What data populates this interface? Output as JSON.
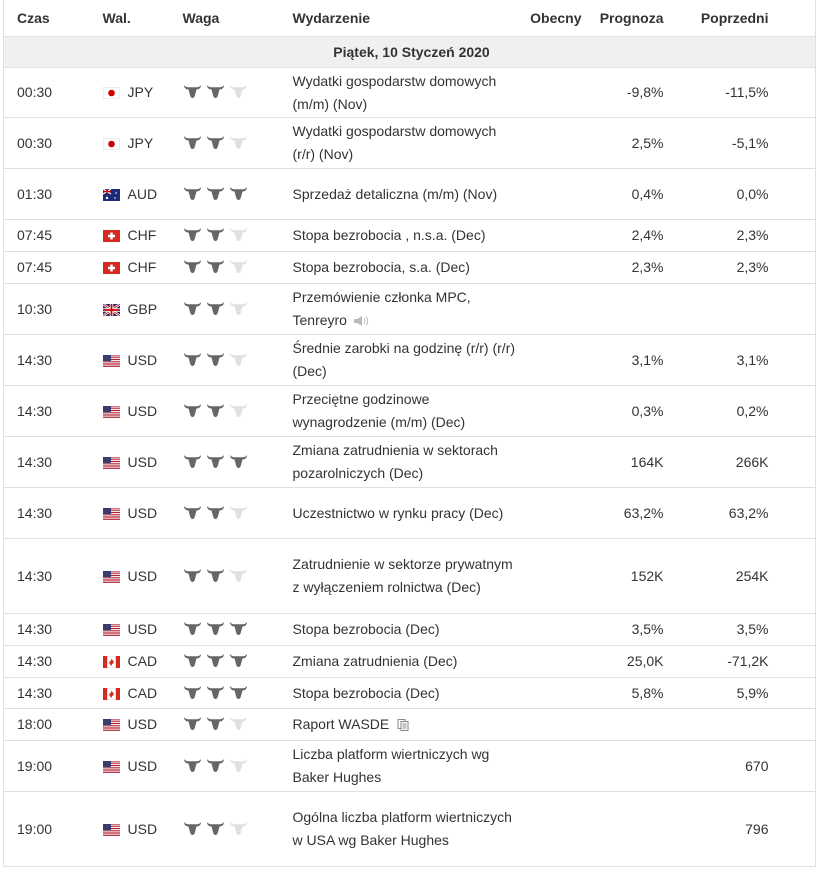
{
  "header": [
    "Czas",
    "Wal.",
    "Waga",
    "Wydarzenie",
    "Obecny",
    "Prognoza",
    "Poprzedni"
  ],
  "date": "Piątek, 10 Styczeń 2020",
  "rows": [
    {
      "time": "00:30",
      "currency": "JPY",
      "importance": 2,
      "event": "Wydatki gospodarstw domowych (m/m) (Nov)",
      "forecast": "-9,8%",
      "previous": "-11,5%"
    },
    {
      "time": "00:30",
      "currency": "JPY",
      "importance": 2,
      "event": "Wydatki gospodarstw domowych (r/r) (Nov)",
      "forecast": "2,5%",
      "previous": "-5,1%"
    },
    {
      "time": "01:30",
      "currency": "AUD",
      "importance": 3,
      "event": "Sprzedaż detaliczna (m/m) (Nov)",
      "forecast": "0,4%",
      "previous": "0,0%"
    },
    {
      "time": "07:45",
      "currency": "CHF",
      "importance": 2,
      "event": "Stopa bezrobocia , n.s.a. (Dec)",
      "forecast": "2,4%",
      "previous": "2,3%"
    },
    {
      "time": "07:45",
      "currency": "CHF",
      "importance": 2,
      "event": "Stopa bezrobocia, s.a. (Dec)",
      "forecast": "2,3%",
      "previous": "2,3%"
    },
    {
      "time": "10:30",
      "currency": "GBP",
      "importance": 2,
      "event": "Przemówienie członka MPC, Tenreyro"
    },
    {
      "time": "14:30",
      "currency": "USD",
      "importance": 2,
      "event": "Średnie zarobki na godzinę (r/r) (r/r) (Dec)",
      "forecast": "3,1%",
      "previous": "3,1%"
    },
    {
      "time": "14:30",
      "currency": "USD",
      "importance": 2,
      "event": "Przeciętne godzinowe wynagrodzenie (m/m) (Dec)",
      "forecast": "0,3%",
      "previous": "0,2%"
    },
    {
      "time": "14:30",
      "currency": "USD",
      "importance": 3,
      "event": "Zmiana zatrudnienia w sektorach pozarolniczych (Dec)",
      "forecast": "164K",
      "previous": "266K"
    },
    {
      "time": "14:30",
      "currency": "USD",
      "importance": 2,
      "event": "Uczestnictwo w rynku pracy (Dec)",
      "forecast": "63,2%",
      "previous": "63,2%"
    },
    {
      "time": "14:30",
      "currency": "USD",
      "importance": 2,
      "event": "Zatrudnienie w sektorze prywatnym z wyłączeniem rolnictwa (Dec)",
      "forecast": "152K",
      "previous": "254K"
    },
    {
      "time": "14:30",
      "currency": "USD",
      "importance": 3,
      "event": "Stopa bezrobocia (Dec)",
      "forecast": "3,5%",
      "previous": "3,5%"
    },
    {
      "time": "14:30",
      "currency": "CAD",
      "importance": 3,
      "event": "Zmiana zatrudnienia (Dec)",
      "forecast": "25,0K",
      "previous": "-71,2K"
    },
    {
      "time": "14:30",
      "currency": "CAD",
      "importance": 3,
      "event": "Stopa bezrobocia (Dec)",
      "forecast": "5,8%",
      "previous": "5,9%"
    },
    {
      "time": "18:00",
      "currency": "USD",
      "importance": 2,
      "event": "Raport WASDE"
    },
    {
      "time": "19:00",
      "currency": "USD",
      "importance": 2,
      "event": "Liczba platform wiertniczych wg Baker Hughes",
      "previous": "670"
    },
    {
      "time": "19:00",
      "currency": "USD",
      "importance": 2,
      "event": "Ogólna liczba platform wiertniczych w USA wg Baker Hughes",
      "previous": "796"
    }
  ]
}
